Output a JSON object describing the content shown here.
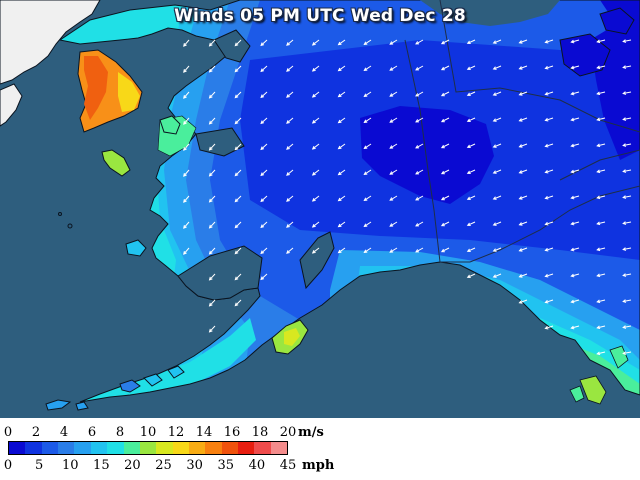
{
  "title": "Winds 05 PM UTC Wed Dec 28",
  "colors": {
    "ocean": "#2e5e7e",
    "coast_outline": "#0a1420",
    "border_line": "#1e2e48",
    "land_gray": "#f0f0f0"
  },
  "legend": {
    "colors": [
      "#0a0ad2",
      "#0f33e0",
      "#1c5ae8",
      "#2a7de8",
      "#27a0f0",
      "#21c3f0",
      "#20e0e6",
      "#4aee9c",
      "#9ae640",
      "#d8e820",
      "#f8d818",
      "#f8ac14",
      "#f8800f",
      "#f0520c",
      "#e81e10",
      "#f04c4c",
      "#f48c8c"
    ],
    "ms_labels": [
      "0",
      "2",
      "4",
      "6",
      "8",
      "10",
      "12",
      "14",
      "16",
      "18",
      "20"
    ],
    "ms_unit": "m/s",
    "mph_labels": [
      "0",
      "5",
      "10",
      "15",
      "20",
      "25",
      "30",
      "35",
      "40",
      "45"
    ],
    "mph_unit": "mph"
  }
}
